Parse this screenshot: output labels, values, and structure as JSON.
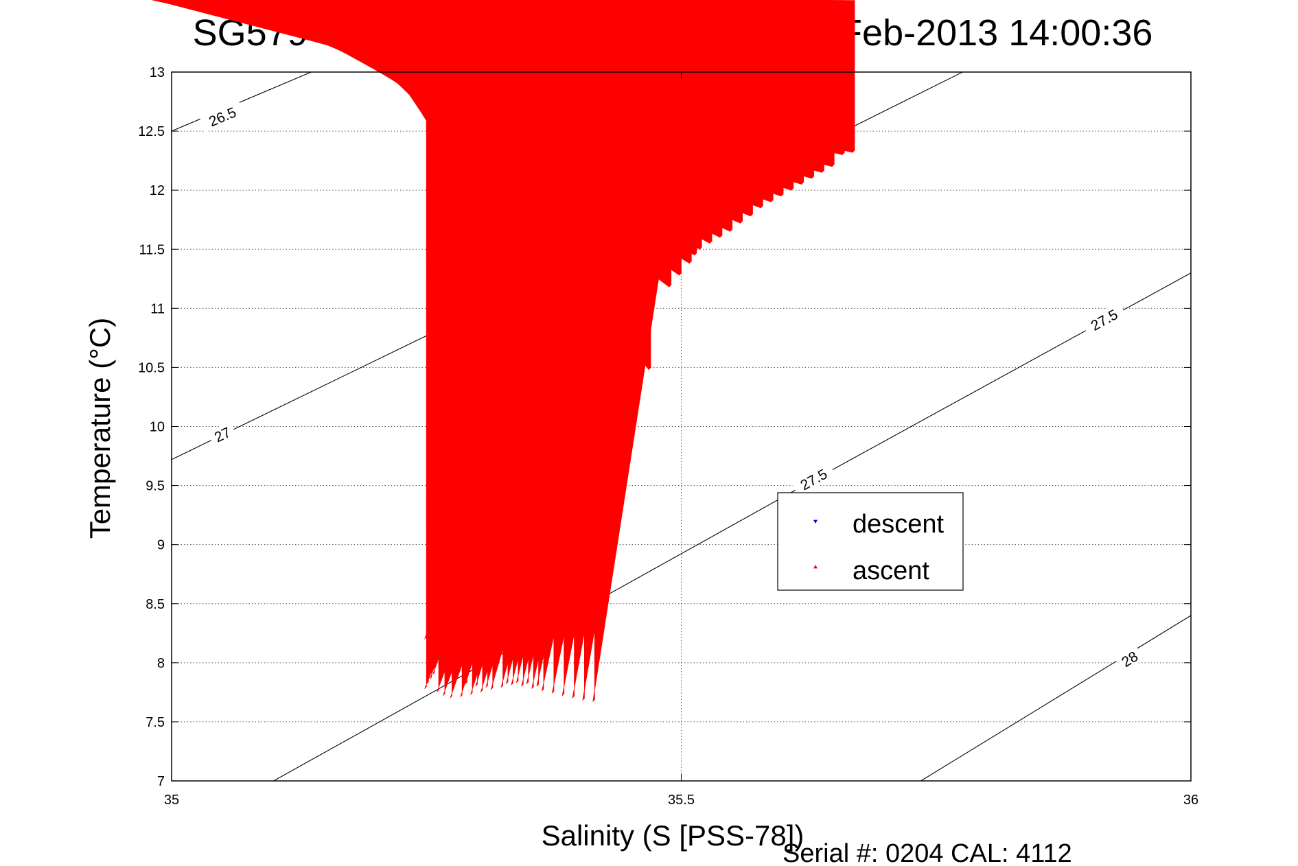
{
  "chart_data": {
    "type": "scatter",
    "title": "SG579 OSMOSIS, dive 218 started 21-Feb-2013 14:00:36",
    "xlabel": "Salinity (S [PSS-78])",
    "ylabel": "Temperature (°C)",
    "footer": "Serial #: 0204  CAL: 4112",
    "xlim": [
      35,
      36
    ],
    "ylim": [
      7,
      13
    ],
    "xticks": [
      35,
      35.5,
      36
    ],
    "xtick_labels": [
      "35",
      "35.5",
      "36"
    ],
    "yticks": [
      7,
      7.5,
      8,
      8.5,
      9,
      9.5,
      10,
      10.5,
      11,
      11.5,
      12,
      12.5,
      13
    ],
    "ytick_labels": [
      "7",
      "7.5",
      "8",
      "8.5",
      "9",
      "9.5",
      "10",
      "10.5",
      "11",
      "11.5",
      "12",
      "12.5",
      "13"
    ],
    "grid": true,
    "legend_position": "center-right",
    "density_contours": [
      {
        "label": "26.5",
        "points": [
          [
            35.0,
            12.5
          ],
          [
            35.137,
            13.0
          ]
        ],
        "labels_at": [
          [
            35.05,
            12.62
          ]
        ]
      },
      {
        "label": "27",
        "points": [
          [
            35.0,
            9.72
          ],
          [
            35.52,
            11.9
          ],
          [
            35.776,
            13.0
          ]
        ],
        "labels_at": [
          [
            35.05,
            9.93
          ],
          [
            35.335,
            11.18
          ],
          [
            35.63,
            12.32
          ]
        ]
      },
      {
        "label": "27.5",
        "points": [
          [
            35.1,
            7.0
          ],
          [
            35.62,
            9.5
          ],
          [
            36.0,
            11.3
          ]
        ],
        "labels_at": [
          [
            35.345,
            8.28
          ],
          [
            35.63,
            9.55
          ],
          [
            35.915,
            10.9
          ]
        ]
      },
      {
        "label": "28",
        "points": [
          [
            35.735,
            7.0
          ],
          [
            36.0,
            8.4
          ]
        ],
        "labels_at": [
          [
            35.94,
            8.03
          ]
        ]
      }
    ],
    "series": [
      {
        "name": "descent",
        "color": "#0000ff",
        "marker": "triangle-down",
        "points": [
          [
            35.25,
            7.81
          ],
          [
            35.26,
            7.8
          ],
          [
            35.27,
            7.79
          ],
          [
            35.28,
            7.8
          ],
          [
            35.29,
            7.8
          ],
          [
            35.3,
            7.78
          ],
          [
            35.31,
            7.77
          ],
          [
            35.32,
            7.76
          ],
          [
            35.33,
            7.75
          ],
          [
            35.34,
            7.73
          ],
          [
            35.35,
            7.71
          ],
          [
            35.36,
            7.72
          ],
          [
            35.37,
            7.73
          ],
          [
            35.38,
            7.72
          ],
          [
            35.39,
            7.71
          ],
          [
            35.4,
            7.7
          ],
          [
            35.41,
            7.7
          ],
          [
            35.42,
            7.7
          ],
          [
            35.43,
            7.69
          ],
          [
            35.26,
            7.9
          ],
          [
            35.27,
            7.91
          ],
          [
            35.28,
            7.92
          ],
          [
            35.29,
            7.91
          ],
          [
            35.3,
            7.92
          ],
          [
            35.31,
            7.93
          ],
          [
            35.32,
            7.93
          ],
          [
            35.33,
            7.94
          ],
          [
            35.255,
            7.85
          ],
          [
            35.258,
            7.88
          ],
          [
            35.262,
            7.84
          ],
          [
            35.275,
            7.75
          ],
          [
            35.285,
            7.72
          ],
          [
            35.3,
            7.73
          ],
          [
            35.315,
            7.72
          ],
          [
            35.255,
            8.05
          ],
          [
            35.26,
            8.15
          ],
          [
            35.265,
            8.2
          ],
          [
            35.27,
            8.28
          ],
          [
            35.28,
            8.35
          ],
          [
            35.285,
            8.4
          ],
          [
            35.29,
            8.45
          ],
          [
            35.3,
            8.5
          ],
          [
            35.31,
            8.58
          ],
          [
            35.32,
            8.65
          ],
          [
            35.33,
            8.72
          ],
          [
            35.34,
            8.78
          ],
          [
            35.35,
            8.82
          ],
          [
            35.345,
            8.7
          ],
          [
            35.3,
            8.25
          ],
          [
            35.31,
            8.2
          ],
          [
            35.305,
            8.15
          ],
          [
            35.295,
            8.1
          ],
          [
            35.36,
            8.92
          ],
          [
            35.365,
            8.98
          ],
          [
            35.36,
            9.05
          ],
          [
            35.355,
            9.1
          ],
          [
            35.35,
            9.18
          ],
          [
            35.345,
            9.22
          ],
          [
            35.34,
            9.25
          ],
          [
            35.34,
            9.3
          ],
          [
            35.345,
            9.35
          ],
          [
            35.35,
            9.38
          ],
          [
            35.34,
            9.4
          ],
          [
            35.33,
            9.38
          ],
          [
            35.32,
            9.4
          ],
          [
            35.31,
            9.38
          ],
          [
            35.3,
            9.35
          ],
          [
            35.29,
            9.32
          ],
          [
            35.28,
            9.3
          ],
          [
            35.27,
            9.28
          ],
          [
            35.26,
            9.27
          ],
          [
            35.3,
            9.5
          ],
          [
            35.31,
            9.55
          ],
          [
            35.32,
            9.58
          ],
          [
            35.315,
            9.62
          ],
          [
            35.305,
            9.68
          ],
          [
            35.3,
            9.72
          ],
          [
            35.31,
            9.75
          ],
          [
            35.32,
            9.78
          ],
          [
            35.33,
            9.82
          ],
          [
            35.34,
            9.85
          ],
          [
            35.32,
            10.05
          ],
          [
            35.33,
            10.08
          ],
          [
            35.34,
            10.12
          ],
          [
            35.35,
            10.15
          ],
          [
            35.36,
            10.2
          ],
          [
            35.37,
            10.24
          ],
          [
            35.38,
            10.28
          ],
          [
            35.39,
            10.32
          ],
          [
            35.4,
            10.35
          ],
          [
            35.41,
            10.38
          ],
          [
            35.42,
            10.4
          ],
          [
            35.43,
            10.42
          ],
          [
            35.42,
            10.35
          ],
          [
            35.41,
            10.3
          ],
          [
            35.4,
            10.25
          ],
          [
            35.36,
            10.4
          ],
          [
            35.365,
            10.44
          ],
          [
            35.37,
            10.5
          ],
          [
            35.375,
            10.55
          ],
          [
            35.38,
            10.58
          ],
          [
            35.385,
            10.62
          ],
          [
            35.39,
            10.68
          ],
          [
            35.4,
            10.72
          ],
          [
            35.41,
            10.76
          ],
          [
            35.42,
            10.8
          ],
          [
            35.43,
            10.85
          ],
          [
            35.44,
            10.9
          ],
          [
            35.45,
            10.92
          ],
          [
            35.46,
            10.96
          ],
          [
            35.47,
            11.0
          ],
          [
            35.48,
            11.05
          ],
          [
            35.49,
            11.1
          ],
          [
            35.5,
            11.15
          ],
          [
            35.47,
            11.3
          ],
          [
            35.48,
            11.35
          ],
          [
            35.49,
            11.38
          ],
          [
            35.5,
            11.42
          ],
          [
            35.495,
            11.28
          ],
          [
            35.485,
            11.22
          ],
          [
            35.51,
            11.45
          ],
          [
            35.52,
            11.5
          ],
          [
            35.53,
            11.55
          ],
          [
            35.54,
            11.58
          ],
          [
            35.55,
            11.62
          ],
          [
            35.56,
            11.66
          ],
          [
            35.57,
            11.7
          ],
          [
            35.58,
            11.75
          ],
          [
            35.59,
            11.8
          ],
          [
            35.6,
            11.85
          ],
          [
            35.61,
            11.88
          ],
          [
            35.62,
            11.92
          ],
          [
            35.63,
            11.96
          ],
          [
            35.64,
            12.0
          ],
          [
            35.65,
            12.05
          ],
          [
            35.66,
            12.08
          ],
          [
            35.67,
            12.12
          ],
          [
            35.68,
            12.15
          ],
          [
            35.685,
            12.1
          ],
          [
            35.6,
            12.2
          ],
          [
            35.61,
            12.22
          ],
          [
            35.62,
            12.25
          ],
          [
            35.63,
            12.28
          ],
          [
            35.64,
            12.3
          ],
          [
            35.65,
            12.32
          ],
          [
            35.66,
            12.33
          ],
          [
            35.67,
            12.34
          ],
          [
            35.68,
            12.35
          ],
          [
            35.688,
            12.33
          ],
          [
            35.69,
            12.3
          ],
          [
            35.685,
            12.25
          ],
          [
            35.68,
            12.2
          ]
        ]
      },
      {
        "name": "ascent",
        "color": "#ff0000",
        "marker": "triangle-up",
        "points": [
          [
            35.25,
            7.78
          ],
          [
            35.252,
            7.82
          ],
          [
            35.255,
            7.86
          ],
          [
            35.258,
            7.9
          ],
          [
            35.262,
            7.75
          ],
          [
            35.268,
            7.72
          ],
          [
            35.275,
            7.7
          ],
          [
            35.285,
            7.71
          ],
          [
            35.295,
            7.73
          ],
          [
            35.305,
            7.75
          ],
          [
            35.315,
            7.77
          ],
          [
            35.325,
            7.79
          ],
          [
            35.335,
            7.81
          ],
          [
            35.345,
            7.8
          ],
          [
            35.355,
            7.78
          ],
          [
            35.365,
            7.76
          ],
          [
            35.375,
            7.74
          ],
          [
            35.385,
            7.72
          ],
          [
            35.395,
            7.7
          ],
          [
            35.405,
            7.68
          ],
          [
            35.415,
            7.67
          ],
          [
            35.29,
            7.82
          ],
          [
            35.3,
            7.8
          ],
          [
            35.31,
            7.79
          ],
          [
            35.33,
            7.82
          ],
          [
            35.34,
            7.83
          ],
          [
            35.35,
            7.82
          ],
          [
            35.36,
            7.8
          ],
          [
            35.25,
            8.2
          ],
          [
            35.255,
            8.25
          ],
          [
            35.262,
            8.28
          ],
          [
            35.27,
            8.3
          ],
          [
            35.28,
            8.32
          ],
          [
            35.29,
            8.33
          ],
          [
            35.3,
            8.34
          ],
          [
            35.31,
            8.35
          ],
          [
            35.315,
            8.32
          ],
          [
            35.26,
            8.4
          ],
          [
            35.255,
            8.45
          ],
          [
            35.265,
            8.5
          ],
          [
            35.28,
            8.55
          ],
          [
            35.275,
            9.25
          ],
          [
            35.285,
            9.28
          ],
          [
            35.295,
            9.3
          ],
          [
            35.305,
            9.32
          ],
          [
            35.315,
            9.35
          ],
          [
            35.325,
            9.38
          ],
          [
            35.335,
            9.4
          ],
          [
            35.345,
            9.42
          ],
          [
            35.34,
            9.32
          ],
          [
            35.335,
            9.22
          ],
          [
            35.34,
            9.15
          ],
          [
            35.35,
            9.1
          ],
          [
            35.345,
            9.0
          ],
          [
            35.335,
            8.95
          ],
          [
            35.325,
            8.93
          ],
          [
            35.315,
            8.92
          ],
          [
            35.305,
            8.91
          ],
          [
            35.295,
            8.9
          ],
          [
            35.285,
            8.9
          ],
          [
            35.275,
            8.88
          ],
          [
            35.285,
            9.5
          ],
          [
            35.29,
            9.55
          ],
          [
            35.295,
            9.6
          ],
          [
            35.3,
            9.65
          ],
          [
            35.305,
            9.7
          ],
          [
            35.31,
            9.72
          ],
          [
            35.32,
            9.75
          ],
          [
            35.33,
            9.8
          ],
          [
            35.32,
            9.85
          ],
          [
            35.31,
            9.9
          ],
          [
            35.35,
            10.3
          ],
          [
            35.36,
            10.25
          ],
          [
            35.37,
            10.22
          ],
          [
            35.38,
            10.2
          ],
          [
            35.39,
            10.18
          ],
          [
            35.4,
            10.2
          ],
          [
            35.41,
            10.22
          ],
          [
            35.42,
            10.25
          ],
          [
            35.43,
            10.28
          ],
          [
            35.44,
            10.32
          ],
          [
            35.45,
            10.36
          ],
          [
            35.46,
            10.42
          ],
          [
            35.47,
            10.48
          ],
          [
            35.36,
            10.4
          ],
          [
            35.37,
            10.48
          ],
          [
            35.38,
            10.55
          ],
          [
            35.39,
            10.62
          ],
          [
            35.4,
            10.68
          ],
          [
            35.41,
            10.72
          ],
          [
            35.42,
            10.76
          ],
          [
            35.43,
            10.82
          ],
          [
            35.44,
            10.88
          ],
          [
            35.45,
            10.94
          ],
          [
            35.46,
            11.0
          ],
          [
            35.47,
            11.05
          ],
          [
            35.49,
            11.18
          ],
          [
            35.5,
            11.28
          ],
          [
            35.51,
            11.38
          ],
          [
            35.515,
            11.45
          ],
          [
            35.52,
            11.5
          ],
          [
            35.53,
            11.55
          ],
          [
            35.54,
            11.6
          ],
          [
            35.55,
            11.65
          ],
          [
            35.56,
            11.72
          ],
          [
            35.57,
            11.78
          ],
          [
            35.58,
            11.85
          ],
          [
            35.59,
            11.9
          ],
          [
            35.6,
            11.95
          ],
          [
            35.61,
            12.0
          ],
          [
            35.62,
            12.05
          ],
          [
            35.63,
            12.1
          ],
          [
            35.64,
            12.15
          ],
          [
            35.65,
            12.2
          ],
          [
            35.57,
            12.3
          ],
          [
            35.58,
            12.28
          ],
          [
            35.59,
            12.26
          ],
          [
            35.6,
            12.25
          ],
          [
            35.61,
            12.24
          ],
          [
            35.62,
            12.23
          ],
          [
            35.63,
            12.22
          ],
          [
            35.64,
            12.25
          ],
          [
            35.65,
            12.28
          ],
          [
            35.66,
            12.3
          ],
          [
            35.67,
            12.32
          ],
          [
            35.58,
            12.2
          ],
          [
            35.59,
            12.18
          ],
          [
            35.6,
            12.18
          ],
          [
            35.61,
            12.2
          ]
        ]
      }
    ]
  }
}
